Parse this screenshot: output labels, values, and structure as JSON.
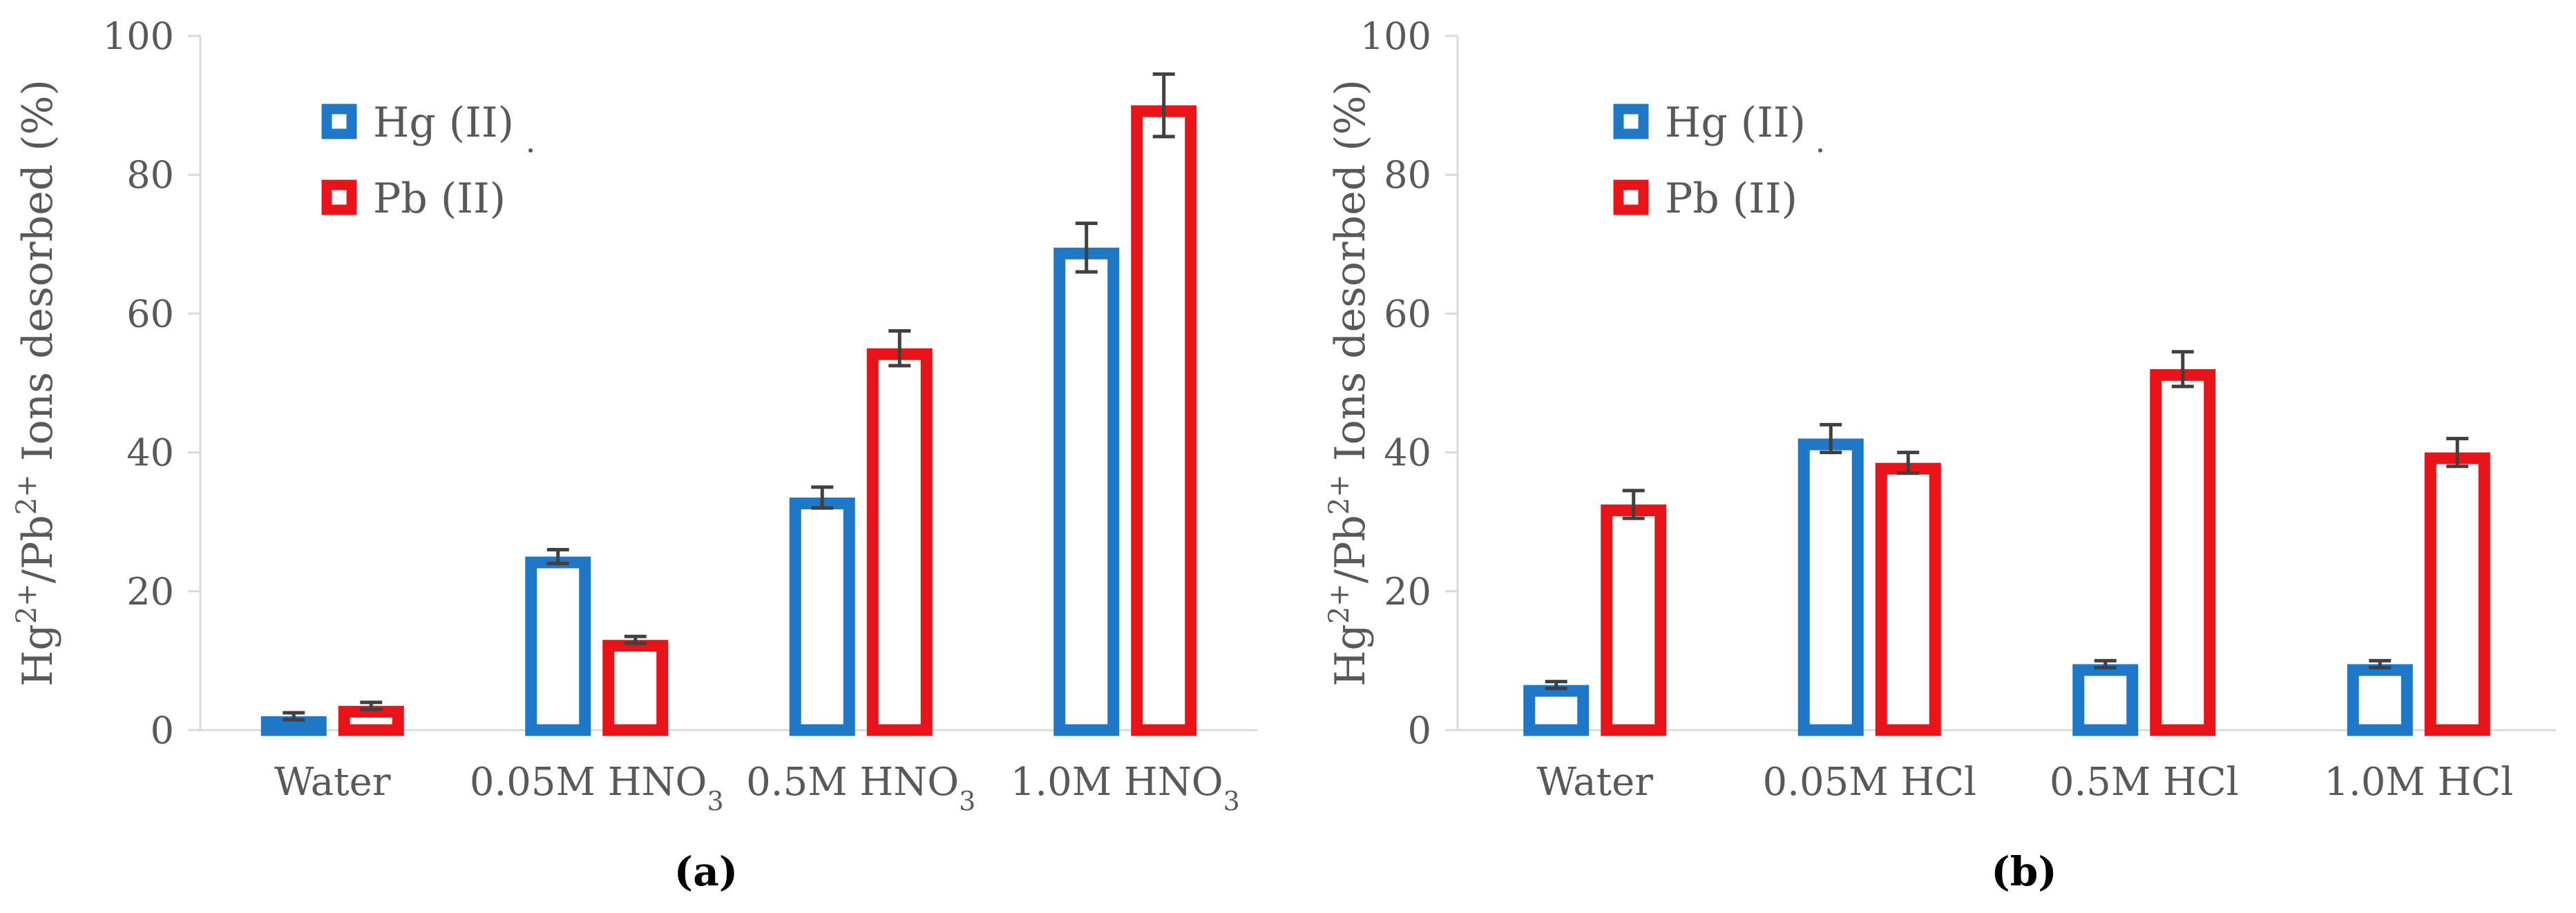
{
  "chart_data": [
    {
      "type": "bar",
      "panel_label": "(a)",
      "ylabel_parts": [
        "Hg",
        "2+",
        "/Pb",
        "2+",
        " Ions desorbed (%)"
      ],
      "ylim": [
        0,
        100
      ],
      "yticks": [
        0,
        20,
        40,
        60,
        80,
        100
      ],
      "categories": [
        {
          "base": "Water",
          "sub": ""
        },
        {
          "base": "0.05M HNO",
          "sub": "3"
        },
        {
          "base": "0.5M HNO",
          "sub": "3"
        },
        {
          "base": "1.0M HNO",
          "sub": "3"
        }
      ],
      "series": [
        {
          "name": "Hg (II)",
          "color": "#1f77c8",
          "values": [
            2,
            25,
            33.5,
            69.5
          ],
          "errors": [
            0.5,
            1,
            1.5,
            3.5
          ]
        },
        {
          "name": "Pb (II)",
          "color": "#e8141a",
          "values": [
            3.5,
            13,
            55,
            90
          ],
          "errors": [
            0.5,
            0.5,
            2.5,
            4.5
          ]
        }
      ],
      "legend": "top-left"
    },
    {
      "type": "bar",
      "panel_label": "(b)",
      "ylabel_parts": [
        "Hg",
        "2+",
        "/Pb",
        "2+",
        " Ions desorbed (%)"
      ],
      "ylim": [
        0,
        100
      ],
      "yticks": [
        0,
        20,
        40,
        60,
        80,
        100
      ],
      "categories": [
        {
          "base": "Water",
          "sub": ""
        },
        {
          "base": "0.05M HCl",
          "sub": ""
        },
        {
          "base": "0.5M HCl",
          "sub": ""
        },
        {
          "base": "1.0M HCl",
          "sub": ""
        }
      ],
      "series": [
        {
          "name": "Hg (II)",
          "color": "#1f77c8",
          "values": [
            6.5,
            42,
            9.5,
            9.5
          ],
          "errors": [
            0.5,
            2,
            0.5,
            0.5
          ]
        },
        {
          "name": "Pb (II)",
          "color": "#e8141a",
          "values": [
            32.5,
            38.5,
            52,
            40
          ],
          "errors": [
            2,
            1.5,
            2.5,
            2
          ]
        }
      ],
      "legend": "top-left"
    }
  ]
}
